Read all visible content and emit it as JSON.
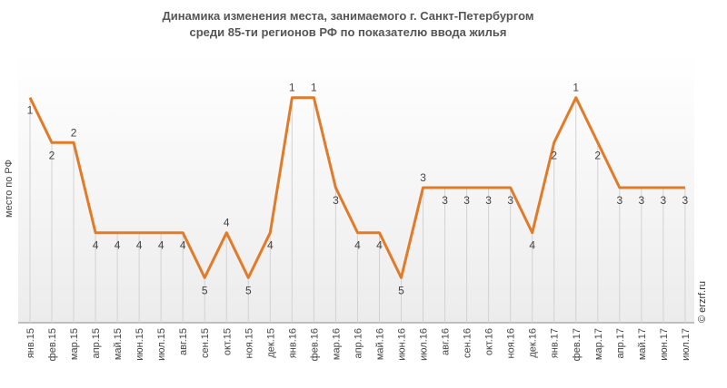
{
  "chart_data": {
    "type": "line",
    "title_lines": [
      "Динамика изменения места, занимаемого г. Санкт-Петербургом",
      "среди 85-ти регионов РФ по показателю ввода жилья"
    ],
    "xlabel": "",
    "ylabel": "место по РФ",
    "credit": "© erzrf.ru",
    "y_inverted": true,
    "ylim": [
      0.0,
      6.0
    ],
    "grid": false,
    "legend": "none",
    "line_color": "#e07b2a",
    "categories": [
      "янв.15",
      "фев.15",
      "мар.15",
      "апр.15",
      "май.15",
      "июн.15",
      "июл.15",
      "авг.15",
      "сен.15",
      "окт.15",
      "ноя.15",
      "дек.15",
      "янв.16",
      "фев.16",
      "мар.16",
      "апр.16",
      "май.16",
      "июн.16",
      "июл.16",
      "авг.16",
      "сен.16",
      "окт.16",
      "ноя.16",
      "дек.16",
      "янв.17",
      "фев.17",
      "мар.17",
      "апр.17",
      "май.17",
      "июн.17",
      "июл.17"
    ],
    "values": [
      1,
      2,
      2,
      4,
      4,
      4,
      4,
      4,
      5,
      4,
      5,
      4,
      1,
      1,
      3,
      4,
      4,
      5,
      3,
      3,
      3,
      3,
      3,
      4,
      2,
      1,
      2,
      3,
      3,
      3,
      3
    ],
    "labels": [
      "1",
      "2",
      "2",
      "4",
      "4",
      "4",
      "4",
      "4",
      "5",
      "4",
      "5",
      "4",
      "1",
      "1",
      "3",
      "4",
      "4",
      "5",
      "3",
      "3",
      "3",
      "3",
      "3",
      "4",
      "2",
      "1",
      "2",
      "3",
      "3",
      "3",
      "3"
    ],
    "label_positions": [
      "below",
      "below",
      "above",
      "below",
      "below",
      "below",
      "below",
      "below",
      "below",
      "above",
      "below",
      "below",
      "above",
      "above",
      "below",
      "below",
      "below",
      "below",
      "above",
      "below",
      "below",
      "below",
      "below",
      "below",
      "below",
      "above",
      "below",
      "below",
      "below",
      "below",
      "below"
    ]
  }
}
